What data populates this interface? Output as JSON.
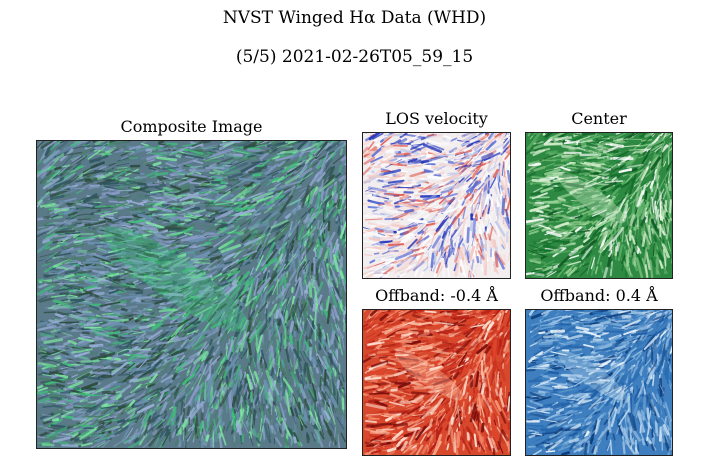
{
  "header": {
    "title": "NVST Winged Hα Data (WHD)",
    "subtitle": "(5/5)   2021-02-26T05_59_15"
  },
  "panels": [
    {
      "id": "composite",
      "label": "Composite Image",
      "palette": "composite",
      "base": "#5a7a8a"
    },
    {
      "id": "los",
      "label": "LOS velocity",
      "palette": "bwr",
      "base": "#f2eef0"
    },
    {
      "id": "center",
      "label": "Center",
      "palette": "greens",
      "base": "#2e8a42"
    },
    {
      "id": "offband-neg",
      "label": "Offband: -0.4 Å",
      "palette": "reds",
      "base": "#d8482c"
    },
    {
      "id": "offband-pos",
      "label": "Offband: 0.4 Å",
      "palette": "blues",
      "base": "#3f7fbf"
    }
  ]
}
